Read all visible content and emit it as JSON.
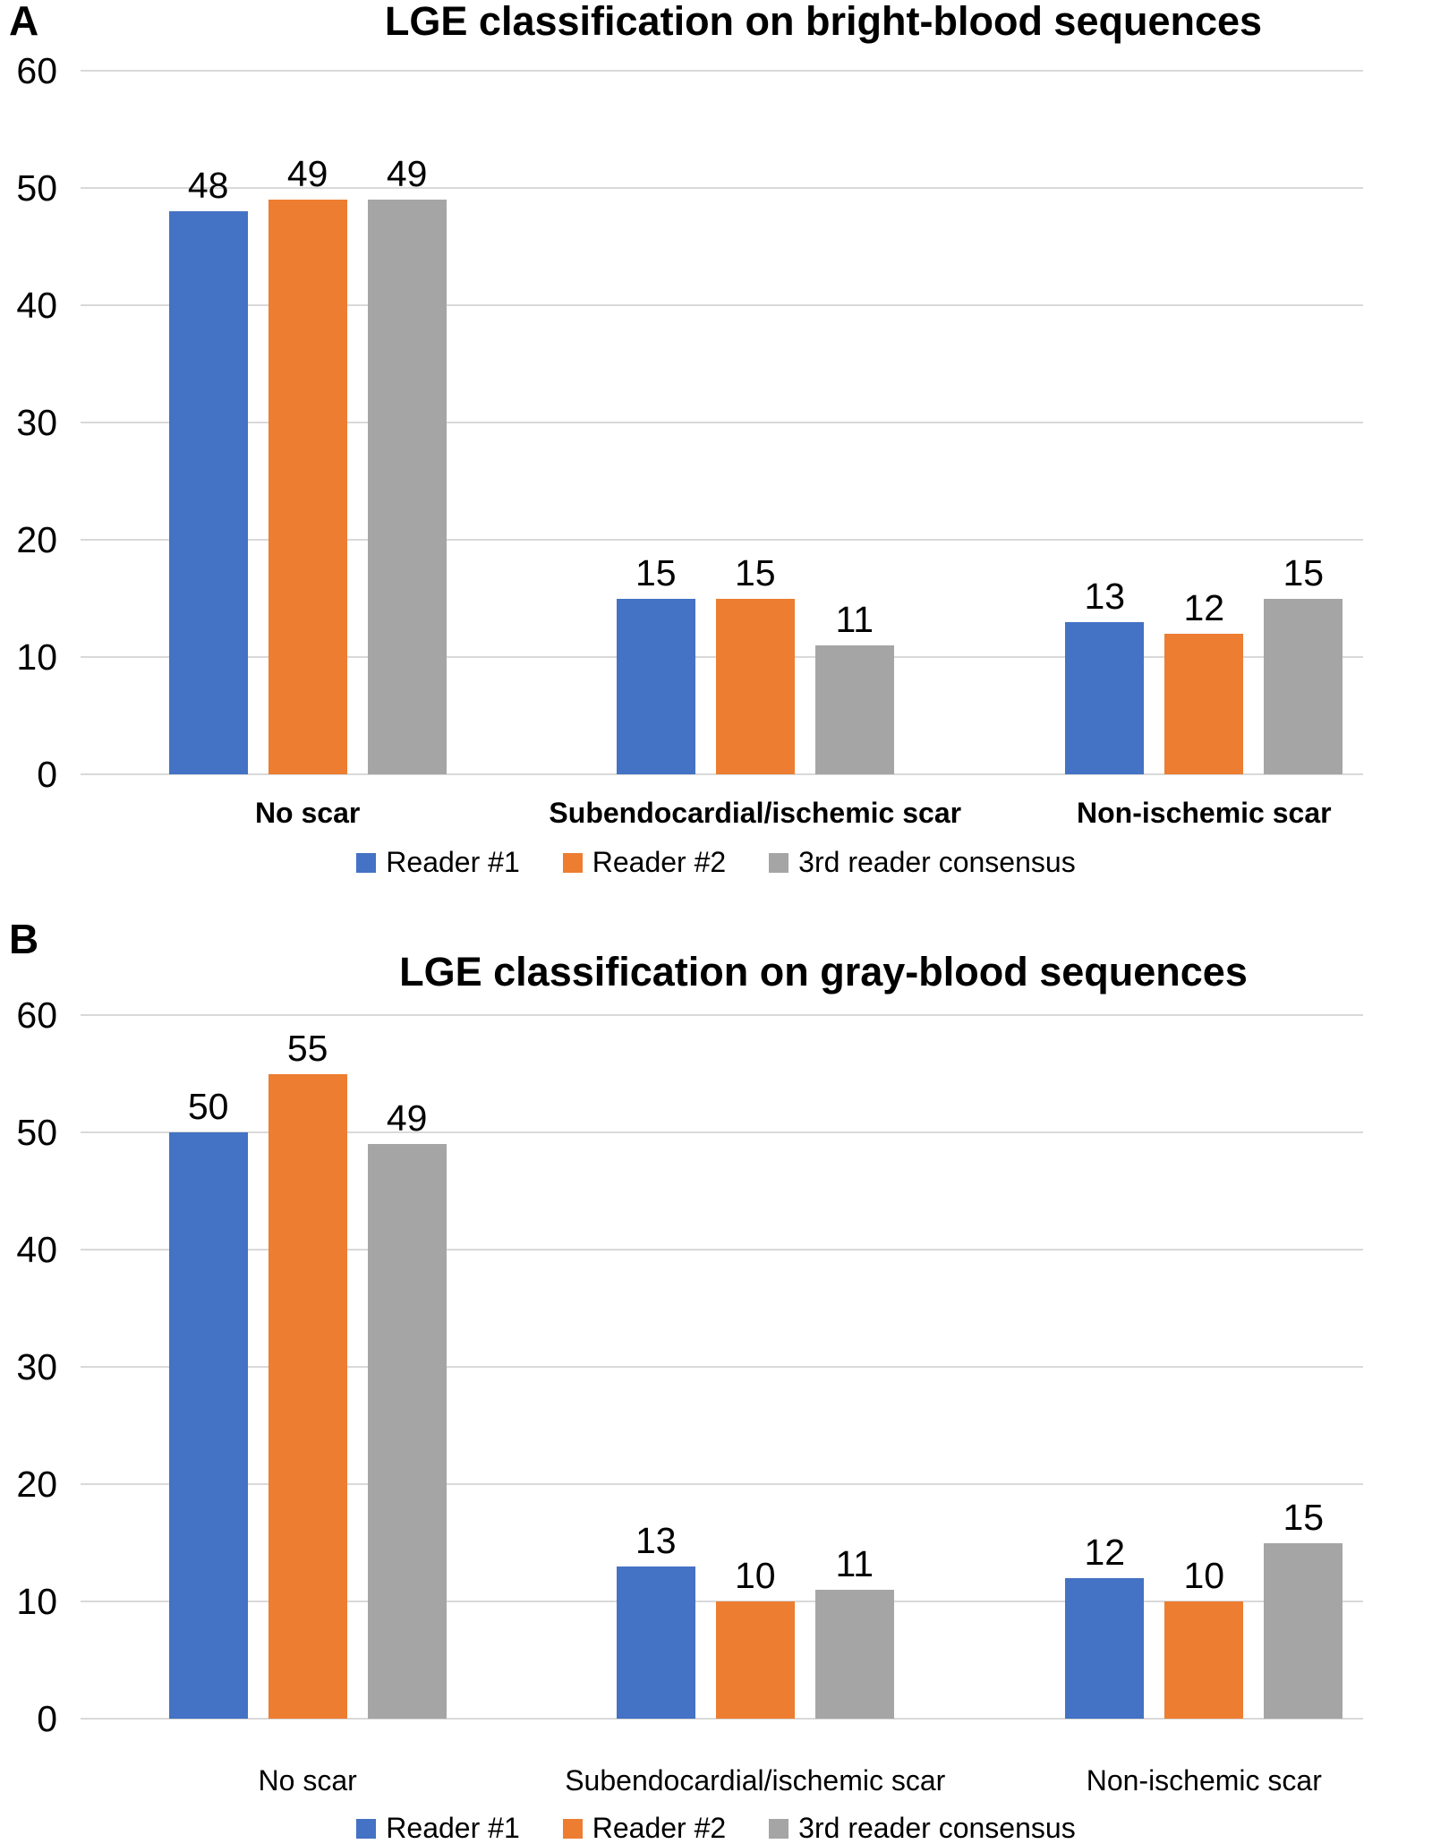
{
  "figure": {
    "panel_a_letter": "A",
    "panel_b_letter": "B"
  },
  "colors": {
    "reader1": "#4472C4",
    "reader2": "#ED7D31",
    "consensus": "#A5A5A5",
    "gridline": "#D9D9D9"
  },
  "chart_data": [
    {
      "type": "bar",
      "panel": "A",
      "title": "LGE classification on bright-blood sequences",
      "categories": [
        "No scar",
        "Subendocardial/ischemic scar",
        "Non-ischemic scar"
      ],
      "series": [
        {
          "name": "Reader #1",
          "color": "#4472C4",
          "values": [
            48,
            15,
            13
          ]
        },
        {
          "name": "Reader #2",
          "color": "#ED7D31",
          "values": [
            49,
            15,
            12
          ]
        },
        {
          "name": "3rd reader consensus",
          "color": "#A5A5A5",
          "values": [
            49,
            11,
            15
          ]
        }
      ],
      "ylim": [
        0,
        60
      ],
      "yticks": [
        0,
        10,
        20,
        30,
        40,
        50,
        60
      ],
      "xlabel": "",
      "ylabel": "",
      "grid": true,
      "value_labels": true,
      "legend_position": "bottom"
    },
    {
      "type": "bar",
      "panel": "B",
      "title": "LGE classification on gray-blood sequences",
      "categories": [
        "No scar",
        "Subendocardial/ischemic scar",
        "Non-ischemic scar"
      ],
      "series": [
        {
          "name": "Reader #1",
          "color": "#4472C4",
          "values": [
            50,
            13,
            12
          ]
        },
        {
          "name": "Reader #2",
          "color": "#ED7D31",
          "values": [
            55,
            10,
            10
          ]
        },
        {
          "name": "3rd reader consensus",
          "color": "#A5A5A5",
          "values": [
            49,
            11,
            15
          ]
        }
      ],
      "ylim": [
        0,
        60
      ],
      "yticks": [
        0,
        10,
        20,
        30,
        40,
        50,
        60
      ],
      "xlabel": "",
      "ylabel": "",
      "grid": true,
      "value_labels": true,
      "legend_position": "bottom"
    }
  ]
}
